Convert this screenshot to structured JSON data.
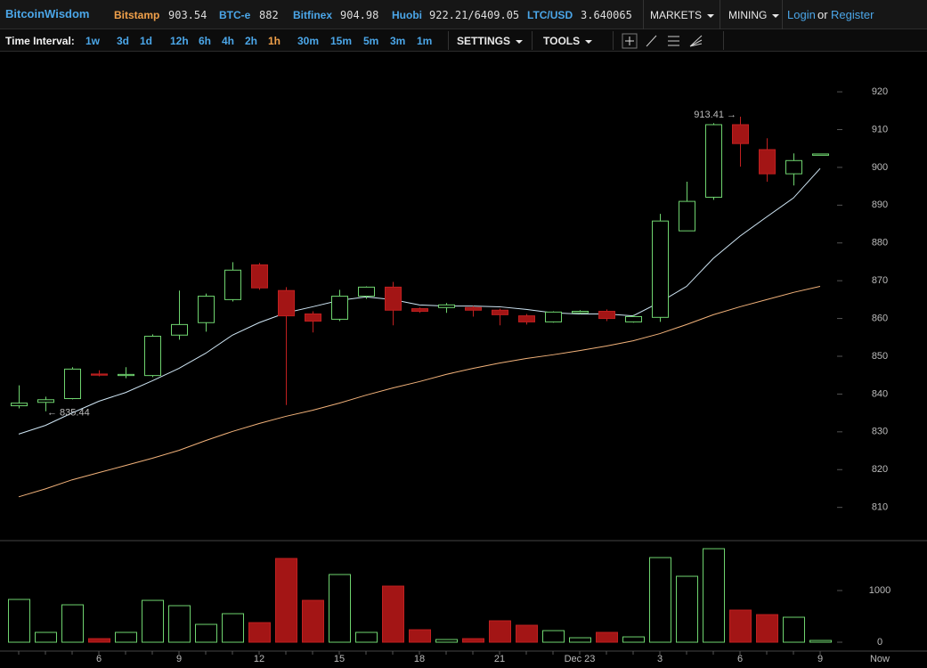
{
  "header": {
    "brand": "BitcoinWisdom",
    "tickers": [
      {
        "name": "Bitstamp",
        "price": "903.54",
        "active": true
      },
      {
        "name": "BTC-e",
        "price": "882",
        "active": false
      },
      {
        "name": "Bitfinex",
        "price": "904.98",
        "active": false
      },
      {
        "name": "Huobi",
        "price": "922.21/6409.05",
        "active": false
      },
      {
        "name": "LTC/USD",
        "price": "3.640065",
        "active": false
      }
    ],
    "menus": [
      "MARKETS",
      "MINING"
    ],
    "login": "Login",
    "or": "or",
    "register": "Register"
  },
  "toolbar": {
    "label": "Time Interval:",
    "intervals": [
      "1w",
      "3d",
      "1d",
      "12h",
      "6h",
      "4h",
      "2h",
      "1h",
      "30m",
      "15m",
      "5m",
      "3m",
      "1m"
    ],
    "active_interval": "1h",
    "settings": "SETTINGS",
    "tools": "TOOLS"
  },
  "chart_data": [
    {
      "type": "candlestick",
      "up_color": "#6fd46f",
      "down_color": "#a31515",
      "open": [
        836.9,
        837.8,
        838.8,
        845.3,
        844.9,
        844.9,
        855.6,
        858.9,
        865.0,
        874.2,
        867.4,
        861.2,
        859.8,
        865.9,
        868.3,
        862.6,
        862.9,
        862.9,
        862.2,
        860.7,
        859.1,
        861.5,
        861.9,
        859.1,
        860.3,
        883.2,
        892.1,
        911.3,
        904.7,
        898.3,
        903.2
      ],
      "high": [
        842.3,
        839.3,
        847.1,
        846.3,
        847.1,
        855.8,
        867.4,
        866.6,
        874.9,
        874.7,
        868.3,
        861.9,
        867.6,
        868.5,
        869.7,
        862.9,
        864.1,
        863.3,
        862.6,
        861.2,
        861.9,
        862.2,
        862.4,
        861.0,
        887.7,
        896.2,
        911.7,
        913.41,
        907.7,
        903.7,
        903.6
      ],
      "low": [
        836.2,
        835.44,
        838.6,
        844.7,
        844.2,
        844.5,
        854.4,
        856.5,
        864.5,
        867.6,
        837.1,
        856.3,
        859.3,
        865.2,
        858.2,
        861.5,
        861.5,
        860.5,
        858.2,
        858.4,
        858.9,
        861.2,
        859.3,
        858.9,
        859.1,
        883.2,
        891.4,
        900.2,
        896.2,
        895.2,
        903.2
      ],
      "close": [
        837.6,
        838.5,
        846.6,
        845.0,
        845.2,
        855.3,
        858.4,
        865.9,
        872.8,
        868.1,
        860.7,
        859.3,
        865.9,
        868.3,
        862.2,
        861.9,
        863.6,
        862.2,
        861.0,
        859.1,
        861.7,
        861.9,
        860.0,
        860.5,
        885.8,
        891.0,
        911.3,
        906.3,
        898.3,
        901.8,
        903.54
      ],
      "lines": [
        {
          "color": "#cfe6f5",
          "values": [
            829.4,
            831.7,
            835.0,
            838.1,
            840.4,
            843.5,
            846.8,
            850.8,
            855.6,
            858.9,
            861.5,
            863.1,
            864.8,
            865.7,
            865.0,
            863.6,
            863.3,
            863.3,
            863.1,
            862.4,
            861.5,
            861.2,
            861.2,
            860.7,
            864.3,
            868.5,
            875.9,
            881.8,
            886.9,
            891.9,
            899.7
          ]
        },
        {
          "color": "#f2b27a",
          "values": [
            812.8,
            814.9,
            817.3,
            819.2,
            821.1,
            823.0,
            825.1,
            827.7,
            830.1,
            832.2,
            834.1,
            835.7,
            837.6,
            839.7,
            841.6,
            843.3,
            845.2,
            846.8,
            848.2,
            849.4,
            850.4,
            851.5,
            852.7,
            854.1,
            856.0,
            858.4,
            861.0,
            863.1,
            865.0,
            866.9,
            868.5
          ]
        }
      ],
      "annotations": {
        "high": "913.41 →",
        "low": "← 835.44"
      },
      "ylim": [
        801.2,
        927.8
      ],
      "yticks": [
        810,
        820,
        830,
        840,
        850,
        860,
        870,
        880,
        890,
        900,
        910,
        920
      ]
    },
    {
      "type": "bar",
      "up_color": "#6fd46f",
      "down_color": "#a31515",
      "categories": [
        null,
        null,
        null,
        "6",
        null,
        null,
        "9",
        null,
        null,
        "12",
        null,
        null,
        "15",
        null,
        null,
        "18",
        null,
        null,
        "21",
        null,
        null,
        "Dec 23",
        null,
        null,
        "3",
        null,
        null,
        "6",
        null,
        null,
        "9"
      ],
      "values": [
        828,
        190,
        724,
        69,
        190,
        810,
        707,
        345,
        552,
        379,
        1621,
        810,
        1310,
        190,
        1086,
        241,
        52,
        69,
        414,
        328,
        224,
        86,
        190,
        103,
        1638,
        1276,
        1810,
        621,
        534,
        483,
        34
      ],
      "now_label": "Now",
      "ylim": [
        -172,
        1966
      ],
      "yticks": [
        0,
        1000
      ]
    }
  ]
}
